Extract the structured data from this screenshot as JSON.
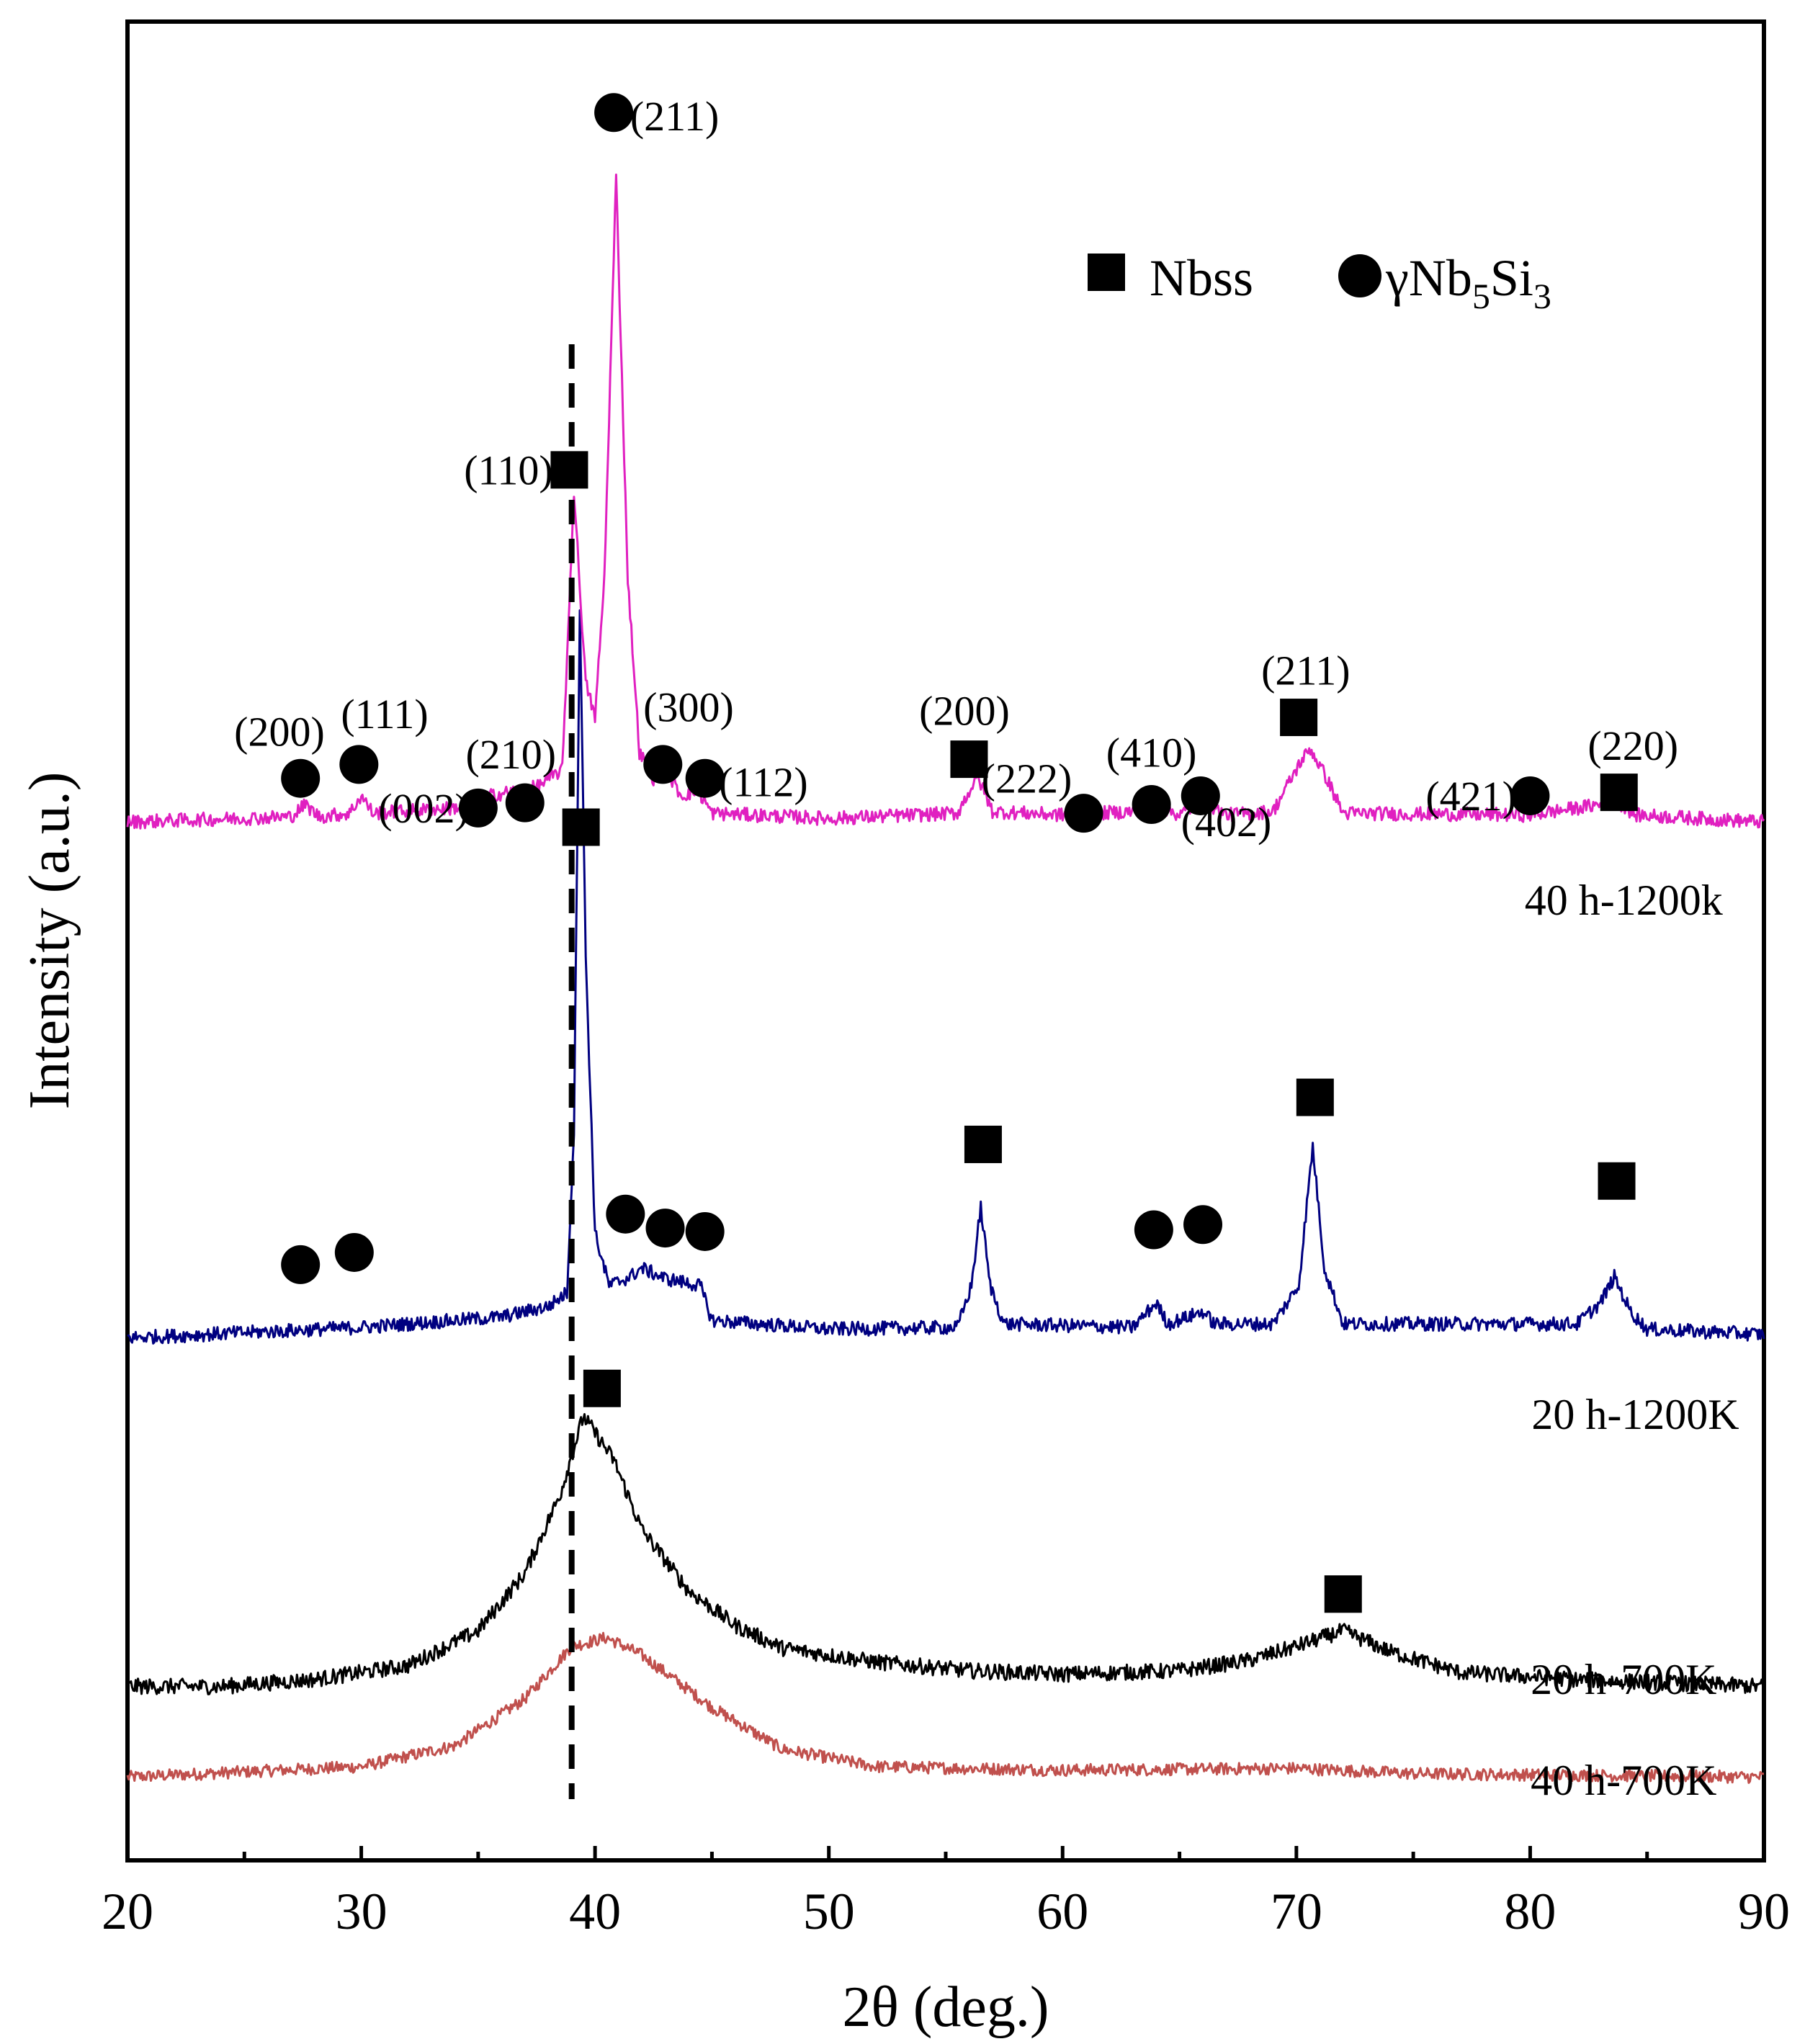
{
  "chart_data": {
    "type": "line",
    "title": "",
    "xlabel": "2θ (deg.)",
    "ylabel": "Intensity (a.u.)",
    "xlim": [
      20,
      90
    ],
    "ylim": [
      0,
      100
    ],
    "xticks": [
      20,
      30,
      40,
      50,
      60,
      70,
      80,
      90
    ],
    "xticks_minor": [
      25,
      35,
      45,
      55,
      65,
      75,
      85
    ],
    "grid": false,
    "reference_line": {
      "x": 39.0,
      "style": "dashed"
    },
    "legend": {
      "placement": "top-right",
      "entries": [
        {
          "marker": "square",
          "label": "Nbss"
        },
        {
          "marker": "circle",
          "label_main": "γNb",
          "sub1": "5",
          "label_mid": "Si",
          "sub2": "3"
        }
      ]
    },
    "series": [
      {
        "name": "40 h-700K",
        "color": "#c0504d",
        "baseline": 3,
        "points": [
          [
            20,
            0
          ],
          [
            30,
            0.6
          ],
          [
            34,
            1.8
          ],
          [
            37,
            4.5
          ],
          [
            39,
            7.5
          ],
          [
            40.5,
            8
          ],
          [
            42,
            7
          ],
          [
            45,
            4
          ],
          [
            48,
            1.6
          ],
          [
            52,
            0.6
          ],
          [
            60,
            0.4
          ],
          [
            70,
            0.5
          ],
          [
            75,
            0.2
          ],
          [
            90,
            0
          ]
        ],
        "noise": 0.35,
        "markers": []
      },
      {
        "name": "20 h-700K",
        "color": "#000000",
        "baseline": 8.2,
        "points": [
          [
            20,
            0
          ],
          [
            24,
            0
          ],
          [
            28,
            0.4
          ],
          [
            32,
            1.2
          ],
          [
            35,
            3.2
          ],
          [
            37,
            6.5
          ],
          [
            38.5,
            11
          ],
          [
            39.5,
            15.5
          ],
          [
            40.8,
            13
          ],
          [
            42,
            9
          ],
          [
            44,
            5.5
          ],
          [
            46,
            3.5
          ],
          [
            48,
            2.2
          ],
          [
            52,
            1.4
          ],
          [
            56,
            0.9
          ],
          [
            60,
            0.7
          ],
          [
            65,
            0.9
          ],
          [
            68,
            1.5
          ],
          [
            70,
            2.3
          ],
          [
            72,
            3.2
          ],
          [
            74,
            2
          ],
          [
            77,
            0.8
          ],
          [
            82,
            0.4
          ],
          [
            90,
            0
          ]
        ],
        "noise": 0.45,
        "markers": [
          {
            "type": "square",
            "x": 40.3,
            "y": 25.3,
            "label": ""
          },
          {
            "type": "square",
            "x": 72.0,
            "y": 13.5,
            "label": ""
          }
        ]
      },
      {
        "name": "20 h-1200K",
        "color": "#000080",
        "baseline": 28.2,
        "points": [
          [
            20,
            0
          ],
          [
            30,
            0.6
          ],
          [
            36,
            1.2
          ],
          [
            38,
            1.8
          ],
          [
            38.8,
            2.6
          ],
          [
            39.1,
            12
          ],
          [
            39.35,
            42
          ],
          [
            39.6,
            22
          ],
          [
            40.0,
            6
          ],
          [
            40.6,
            3
          ],
          [
            41.5,
            3.5
          ],
          [
            42,
            4
          ],
          [
            43,
            3.4
          ],
          [
            44.5,
            3
          ],
          [
            45,
            1
          ],
          [
            50,
            0.5
          ],
          [
            55.5,
            0.6
          ],
          [
            56.1,
            3
          ],
          [
            56.5,
            7.5
          ],
          [
            56.9,
            3
          ],
          [
            57.5,
            0.8
          ],
          [
            63,
            0.6
          ],
          [
            64,
            2
          ],
          [
            64.5,
            0.8
          ],
          [
            66,
            1.5
          ],
          [
            66.5,
            0.8
          ],
          [
            69,
            0.8
          ],
          [
            70.1,
            3
          ],
          [
            70.7,
            11
          ],
          [
            71.2,
            4
          ],
          [
            72,
            0.8
          ],
          [
            82,
            0.8
          ],
          [
            83,
            2
          ],
          [
            83.6,
            3.5
          ],
          [
            84.3,
            1.5
          ],
          [
            85,
            0.5
          ],
          [
            90,
            0.2
          ]
        ],
        "noise": 0.4,
        "markers": [
          {
            "type": "square",
            "x": 56.6,
            "y": 39.3,
            "label": ""
          },
          {
            "type": "square",
            "x": 70.8,
            "y": 42.0,
            "label": ""
          },
          {
            "type": "square",
            "x": 83.7,
            "y": 37.2,
            "label": ""
          },
          {
            "type": "circle",
            "x": 27.4,
            "y": 32.4,
            "label": ""
          },
          {
            "type": "circle",
            "x": 29.7,
            "y": 33.1,
            "label": ""
          },
          {
            "type": "circle",
            "x": 41.3,
            "y": 35.3,
            "label": ""
          },
          {
            "type": "circle",
            "x": 43.0,
            "y": 34.5,
            "label": ""
          },
          {
            "type": "circle",
            "x": 44.7,
            "y": 34.3,
            "label": ""
          },
          {
            "type": "circle",
            "x": 63.9,
            "y": 34.4,
            "label": ""
          },
          {
            "type": "circle",
            "x": 66.0,
            "y": 34.7,
            "label": ""
          }
        ]
      },
      {
        "name": "40 h-1200k",
        "color": "#e020c0",
        "baseline": 57.8,
        "points": [
          [
            20,
            0
          ],
          [
            27,
            0.3
          ],
          [
            27.6,
            1
          ],
          [
            28.2,
            0.3
          ],
          [
            29.5,
            0.5
          ],
          [
            30,
            1.5
          ],
          [
            30.5,
            0.5
          ],
          [
            34,
            0.8
          ],
          [
            35.5,
            1.5
          ],
          [
            37.5,
            2
          ],
          [
            38.6,
            3
          ],
          [
            39.1,
            19
          ],
          [
            39.6,
            8
          ],
          [
            40.0,
            6
          ],
          [
            40.4,
            14
          ],
          [
            40.9,
            37
          ],
          [
            41.4,
            14
          ],
          [
            41.9,
            4
          ],
          [
            42.5,
            2.5
          ],
          [
            43,
            3
          ],
          [
            43.7,
            1.5
          ],
          [
            44.4,
            1.8
          ],
          [
            45,
            0.5
          ],
          [
            50,
            0.2
          ],
          [
            55.5,
            0.5
          ],
          [
            56.1,
            2
          ],
          [
            56.4,
            2.5
          ],
          [
            57,
            0.6
          ],
          [
            60,
            0.4
          ],
          [
            63,
            0.6
          ],
          [
            64,
            1
          ],
          [
            65,
            0.4
          ],
          [
            66,
            1.2
          ],
          [
            67,
            0.4
          ],
          [
            69,
            0.6
          ],
          [
            70.2,
            3.5
          ],
          [
            70.6,
            4.2
          ],
          [
            71.3,
            2.5
          ],
          [
            72,
            0.5
          ],
          [
            80,
            0.4
          ],
          [
            83,
            1
          ],
          [
            83.7,
            1.2
          ],
          [
            84.5,
            0.4
          ],
          [
            90,
            0
          ]
        ],
        "noise": 0.4,
        "markers": [
          {
            "type": "circle",
            "x": 40.8,
            "y": 98.5,
            "label": "(211)",
            "lx": 41.5,
            "ly": 98.3,
            "anchor": "start"
          },
          {
            "type": "square",
            "x": 38.9,
            "y": 78.0,
            "label": "(110)",
            "lx": 38.2,
            "ly": 78.0,
            "anchor": "end"
          },
          {
            "type": "square",
            "x": 39.4,
            "y": 57.5,
            "label": "",
            "lx": 0,
            "ly": 0,
            "anchor": "start"
          },
          {
            "type": "circle",
            "x": 27.4,
            "y": 60.3,
            "label": "(200)",
            "lx": 26.5,
            "ly": 63.0,
            "anchor": "middle"
          },
          {
            "type": "circle",
            "x": 29.9,
            "y": 61.1,
            "label": "(111)",
            "lx": 31.0,
            "ly": 64.0,
            "anchor": "middle"
          },
          {
            "type": "circle",
            "x": 35.0,
            "y": 58.6,
            "label": "(002)",
            "lx": 34.6,
            "ly": 58.6,
            "anchor": "end"
          },
          {
            "type": "circle",
            "x": 37.0,
            "y": 58.9,
            "label": "(210)",
            "lx": 36.4,
            "ly": 61.7,
            "anchor": "middle"
          },
          {
            "type": "circle",
            "x": 42.9,
            "y": 61.1,
            "label": "(300)",
            "lx": 44.0,
            "ly": 64.4,
            "anchor": "middle"
          },
          {
            "type": "circle",
            "x": 44.7,
            "y": 60.3,
            "label": "(112)",
            "lx": 45.3,
            "ly": 60.1,
            "anchor": "start"
          },
          {
            "type": "square",
            "x": 56.0,
            "y": 61.4,
            "label": "(200)",
            "lx": 55.8,
            "ly": 64.2,
            "anchor": "middle"
          },
          {
            "type": "circle",
            "x": 60.9,
            "y": 58.3,
            "label": "(222)",
            "lx": 60.4,
            "ly": 60.3,
            "anchor": "end"
          },
          {
            "type": "circle",
            "x": 63.8,
            "y": 58.8,
            "label": "(410)",
            "lx": 63.8,
            "ly": 61.8,
            "anchor": "middle"
          },
          {
            "type": "circle",
            "x": 65.9,
            "y": 59.3,
            "label": "(402)",
            "lx": 67.0,
            "ly": 57.8,
            "anchor": "middle"
          },
          {
            "type": "square",
            "x": 70.1,
            "y": 63.8,
            "label": "(211)",
            "lx": 70.4,
            "ly": 66.5,
            "anchor": "middle"
          },
          {
            "type": "circle",
            "x": 80.0,
            "y": 59.3,
            "label": "(421)",
            "lx": 79.4,
            "ly": 59.3,
            "anchor": "end"
          },
          {
            "type": "square",
            "x": 83.8,
            "y": 59.5,
            "label": "(220)",
            "lx": 84.4,
            "ly": 62.2,
            "anchor": "middle"
          }
        ]
      }
    ],
    "sample_labels": [
      {
        "text": "40 h-1200k",
        "x": 84.0,
        "y": 53.3
      },
      {
        "text": "20 h-1200K",
        "x": 84.5,
        "y": 23.8
      },
      {
        "text": "20 h-700K",
        "x": 84.0,
        "y": 8.6
      },
      {
        "text": "40 h-700K",
        "x": 84.0,
        "y": 2.8
      }
    ]
  }
}
